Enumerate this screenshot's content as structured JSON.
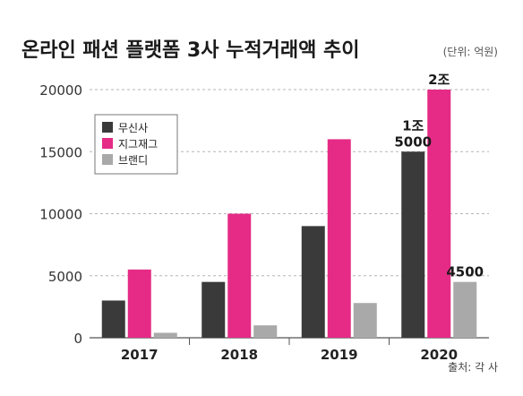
{
  "colors": {
    "무신사": "#3a3a3a",
    "지그재그": "#e52b86",
    "브랜디": "#a9a9a9",
    "grid": "#b5b5b5"
  },
  "chart_data": {
    "type": "bar",
    "title": "온라인 패션 플랫폼 3사 누적거래액 추이",
    "unit": "(단위: 억원)",
    "source": "출처: 각 사",
    "categories": [
      "2017",
      "2018",
      "2019",
      "2020"
    ],
    "series": [
      {
        "name": "무신사",
        "values": [
          3000,
          4500,
          9000,
          15000
        ]
      },
      {
        "name": "지그재그",
        "values": [
          5500,
          10000,
          16000,
          20000
        ]
      },
      {
        "name": "브랜디",
        "values": [
          400,
          1000,
          2800,
          4500
        ]
      }
    ],
    "yticks": [
      0,
      5000,
      10000,
      15000,
      20000
    ],
    "ylim": [
      0,
      20000
    ],
    "grid": true,
    "legend_position": "top-left",
    "data_labels": [
      {
        "series": "무신사",
        "category": "2020",
        "lines": [
          "1조",
          "5000"
        ]
      },
      {
        "series": "지그재그",
        "category": "2020",
        "lines": [
          "2조"
        ]
      },
      {
        "series": "브랜디",
        "category": "2020",
        "lines": [
          "4500"
        ]
      }
    ]
  }
}
